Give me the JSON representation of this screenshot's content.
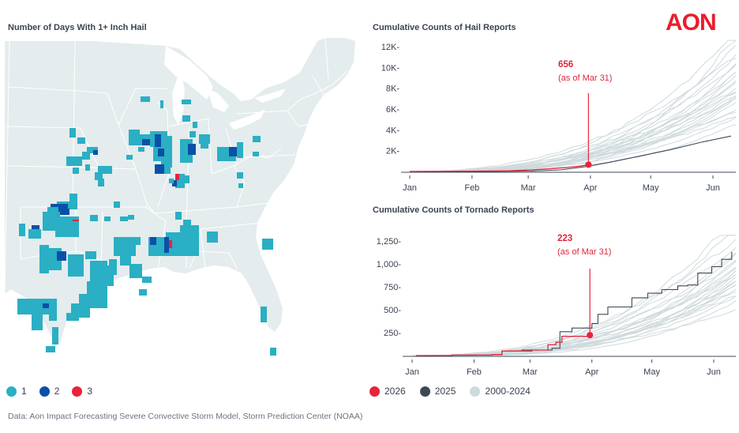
{
  "logo": "AON",
  "map": {
    "title": "Number of Days With 1+ Inch Hail",
    "colors": {
      "land": "#e4eced",
      "border": "#ffffff",
      "water": "#ffffff"
    },
    "legend": [
      {
        "label": "1",
        "color": "#2aafc4"
      },
      {
        "label": "2",
        "color": "#0a50a8"
      },
      {
        "label": "3",
        "color": "#e8233a"
      }
    ]
  },
  "series_legend": [
    {
      "label": "2026",
      "color": "#e8233a"
    },
    {
      "label": "2025",
      "color": "#3e4855"
    },
    {
      "label": "2000-2024",
      "color": "#cfdadd"
    }
  ],
  "source": "Data: Aon Impact Forecasting Severe Convective Storm Model, Storm Prediction Center (NOAA)",
  "chart_data": [
    {
      "type": "line",
      "title": "Cumulative Counts of Hail Reports",
      "xlabel": "",
      "ylabel": "",
      "x_ticks": [
        "Jan",
        "Feb",
        "Mar",
        "Apr",
        "May",
        "Jun"
      ],
      "y_ticks": [
        "2K",
        "4K",
        "6K",
        "8K",
        "10K",
        "12K"
      ],
      "y_tick_values": [
        2000,
        4000,
        6000,
        8000,
        10000,
        12000
      ],
      "ylim": [
        0,
        12000
      ],
      "xlim_days": [
        0,
        160
      ],
      "annotation": {
        "value": "656",
        "note": "(as of Mar 31)",
        "day": 89,
        "y": 656
      },
      "series": [
        {
          "name": "2026",
          "color": "#e8233a",
          "points": [
            [
              0,
              0
            ],
            [
              30,
              20
            ],
            [
              50,
              60
            ],
            [
              60,
              150
            ],
            [
              70,
              260
            ],
            [
              78,
              380
            ],
            [
              85,
              520
            ],
            [
              89,
              656
            ]
          ]
        },
        {
          "name": "2025",
          "color": "#3e4855",
          "points": [
            [
              0,
              0
            ],
            [
              40,
              10
            ],
            [
              60,
              40
            ],
            [
              75,
              150
            ],
            [
              89,
              500
            ],
            [
              100,
              900
            ],
            [
              115,
              1500
            ],
            [
              130,
              2100
            ],
            [
              145,
              2800
            ],
            [
              160,
              3400
            ]
          ]
        },
        {
          "name": "2000-2024",
          "color": "#cfdadd",
          "note": "25 historical years, range at Jun ~3K to ~11K",
          "end_values": [
            3600,
            4200,
            4500,
            4800,
            5000,
            5300,
            5500,
            5700,
            5900,
            6100,
            6300,
            6500,
            6700,
            6900,
            7100,
            7300,
            7600,
            7900,
            8200,
            8600,
            9000,
            9400,
            9800,
            10300,
            11000
          ]
        }
      ]
    },
    {
      "type": "line",
      "title": "Cumulative Counts of Tornado Reports",
      "xlabel": "",
      "ylabel": "",
      "x_ticks": [
        "Jan",
        "Feb",
        "Mar",
        "Apr",
        "May",
        "Jun"
      ],
      "y_ticks": [
        "250",
        "500",
        "750",
        "1,000",
        "1,250"
      ],
      "y_tick_values": [
        250,
        500,
        750,
        1000,
        1250
      ],
      "ylim": [
        0,
        1250
      ],
      "xlim_days": [
        0,
        160
      ],
      "annotation": {
        "value": "223",
        "note": "(as of Mar 31)",
        "day": 89,
        "y": 223
      },
      "series": [
        {
          "name": "2026",
          "color": "#e8233a",
          "points": [
            [
              2,
              0
            ],
            [
              20,
              5
            ],
            [
              40,
              10
            ],
            [
              45,
              50
            ],
            [
              55,
              60
            ],
            [
              62,
              60
            ],
            [
              68,
              120
            ],
            [
              72,
              145
            ],
            [
              75,
              210
            ],
            [
              88,
              210
            ],
            [
              89,
              223
            ]
          ]
        },
        {
          "name": "2025",
          "color": "#3e4855",
          "points": [
            [
              2,
              0
            ],
            [
              20,
              5
            ],
            [
              40,
              10
            ],
            [
              45,
              50
            ],
            [
              60,
              60
            ],
            [
              70,
              80
            ],
            [
              74,
              260
            ],
            [
              80,
              300
            ],
            [
              88,
              300
            ],
            [
              90,
              350
            ],
            [
              93,
              450
            ],
            [
              98,
              530
            ],
            [
              105,
              530
            ],
            [
              110,
              630
            ],
            [
              118,
              680
            ],
            [
              125,
              720
            ],
            [
              133,
              760
            ],
            [
              138,
              770
            ],
            [
              143,
              900
            ],
            [
              150,
              970
            ],
            [
              155,
              1050
            ],
            [
              160,
              1130
            ]
          ]
        },
        {
          "name": "2000-2024",
          "color": "#cfdadd",
          "note": "25 historical years, range at Jun ~400 to ~1250",
          "end_values": [
            420,
            470,
            520,
            550,
            580,
            600,
            620,
            640,
            650,
            660,
            680,
            700,
            720,
            740,
            760,
            780,
            800,
            830,
            860,
            900,
            940,
            1000,
            1080,
            1180,
            1250
          ]
        }
      ]
    }
  ]
}
